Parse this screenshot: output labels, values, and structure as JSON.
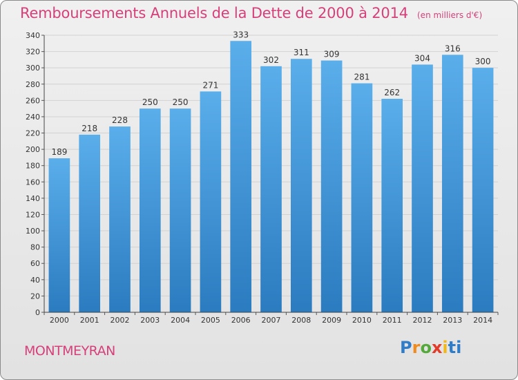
{
  "title": "Remboursements Annuels de la Dette de 2000 à 2014",
  "unit_note": "(en milliers d'€)",
  "commune": "MONTMEYRAN",
  "logo": {
    "text": "Proxiti",
    "colors": [
      "#2f7cc9",
      "#f08c1e",
      "#54a93a",
      "#e23b2a",
      "#f2b81a",
      "#2f7cc9"
    ]
  },
  "chart_data": {
    "type": "bar",
    "title": "Remboursements Annuels de la Dette de 2000 à 2014",
    "subtitle": "(en milliers d'€)",
    "xlabel": "",
    "ylabel": "",
    "categories": [
      "2000",
      "2001",
      "2002",
      "2003",
      "2004",
      "2005",
      "2006",
      "2007",
      "2008",
      "2009",
      "2010",
      "2011",
      "2012",
      "2013",
      "2014"
    ],
    "values": [
      189,
      218,
      228,
      250,
      250,
      271,
      333,
      302,
      311,
      309,
      281,
      262,
      304,
      316,
      300
    ],
    "ylim": [
      0,
      340
    ],
    "yticks": [
      0,
      20,
      40,
      60,
      80,
      100,
      120,
      140,
      160,
      180,
      200,
      220,
      240,
      260,
      280,
      300,
      320,
      340
    ],
    "grid": true,
    "bar_color": "#4a9de0",
    "title_color": "#d6407a"
  }
}
